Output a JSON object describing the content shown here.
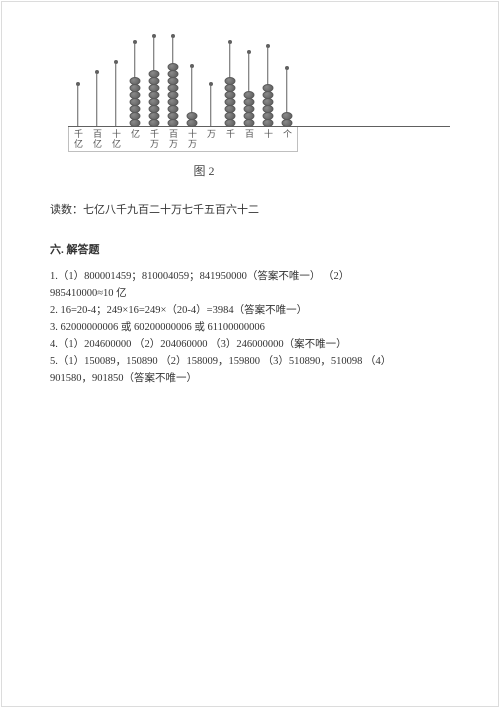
{
  "abacus": {
    "rod_color": "#606060",
    "bead_fill": "#8a8a8a",
    "bead_stroke": "#5a5a5a",
    "base_color": "#606060",
    "columns": [
      {
        "beads": 0,
        "rod_height": 40,
        "label_top": "千",
        "label_bot": "亿"
      },
      {
        "beads": 0,
        "rod_height": 52,
        "label_top": "百",
        "label_bot": "亿"
      },
      {
        "beads": 0,
        "rod_height": 62,
        "label_top": "十",
        "label_bot": "亿"
      },
      {
        "beads": 7,
        "rod_height": 82,
        "label_top": "亿",
        "label_bot": ""
      },
      {
        "beads": 8,
        "rod_height": 88,
        "label_top": "千",
        "label_bot": "万"
      },
      {
        "beads": 9,
        "rod_height": 88,
        "label_top": "百",
        "label_bot": "万"
      },
      {
        "beads": 2,
        "rod_height": 58,
        "label_top": "十",
        "label_bot": "万"
      },
      {
        "beads": 0,
        "rod_height": 40,
        "label_top": "万",
        "label_bot": ""
      },
      {
        "beads": 7,
        "rod_height": 82,
        "label_top": "千",
        "label_bot": ""
      },
      {
        "beads": 5,
        "rod_height": 72,
        "label_top": "百",
        "label_bot": ""
      },
      {
        "beads": 6,
        "rod_height": 78,
        "label_top": "十",
        "label_bot": ""
      },
      {
        "beads": 2,
        "rod_height": 56,
        "label_top": "个",
        "label_bot": ""
      }
    ]
  },
  "caption": "图 2",
  "reading_line": "读数：七亿八千九百二十万七千五百六十二",
  "section_title": "六. 解答题",
  "answers": {
    "l1": "1.（1）800001459；810004059；841950000（答案不唯一）  （2）",
    "l2": "985410000≈10 亿",
    "l3": "2. 16=20-4；249×16=249×（20-4）=3984（答案不唯一）",
    "l4": "3. 62000000006 或 60200000006 或 61100000006",
    "l5": "4.（1）204600000 （2）204060000 （3）246000000（案不唯一）",
    "l6": "5.（1）150089，150890 （2）158009，159800 （3）510890，510098 （4）",
    "l7": "901580，901850（答案不唯一）"
  }
}
